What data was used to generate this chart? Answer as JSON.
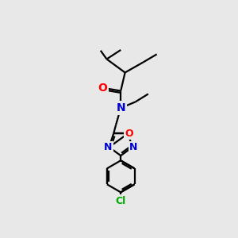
{
  "bg_color": "#e8e8e8",
  "bond_color": "#000000",
  "bond_width": 1.6,
  "atom_colors": {
    "O_carbonyl": "#ff0000",
    "O_ring": "#ff0000",
    "N": "#0000cc",
    "Cl": "#00aa00",
    "C": "#000000"
  },
  "font_size_atom": 9
}
